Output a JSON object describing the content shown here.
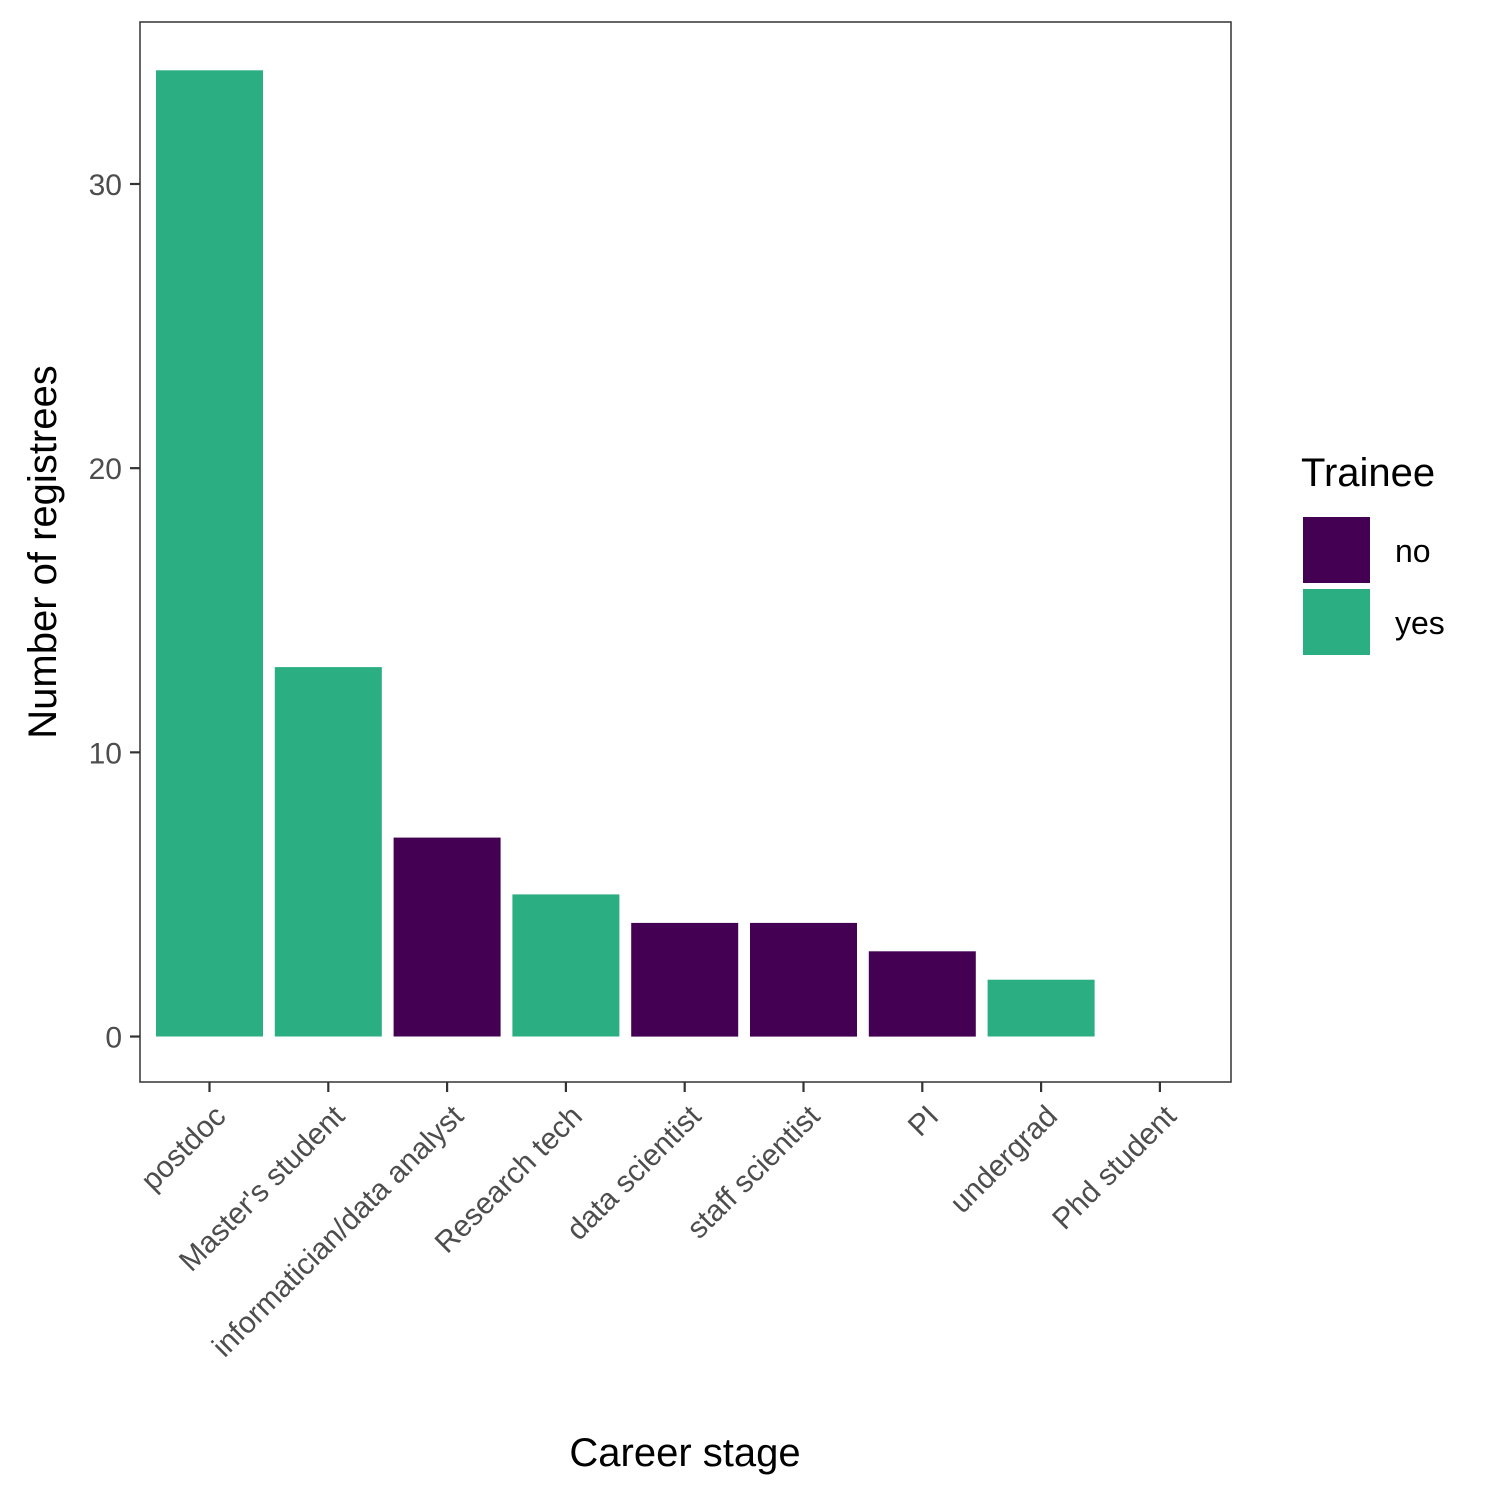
{
  "chart_data": {
    "type": "bar",
    "categories": [
      "postdoc",
      "Master's student",
      "informatician/data analyst",
      "Research tech",
      "data scientist",
      "staff scientist",
      "PI",
      "undergrad",
      "Phd student"
    ],
    "values": [
      34,
      13,
      7,
      5,
      4,
      4,
      3,
      2,
      0
    ],
    "trainee": [
      "yes",
      "yes",
      "no",
      "yes",
      "no",
      "no",
      "no",
      "yes",
      null
    ],
    "xlabel": "Career stage",
    "ylabel": "Number of registrees",
    "ylim": [
      -1.6,
      35.7
    ],
    "yticks": [
      0,
      10,
      20,
      30
    ],
    "legend": {
      "title": "Trainee",
      "placement": "right",
      "entries": [
        {
          "label": "no",
          "color": "#440154"
        },
        {
          "label": "yes",
          "color": "#2AAE82"
        }
      ]
    },
    "grid": false
  }
}
